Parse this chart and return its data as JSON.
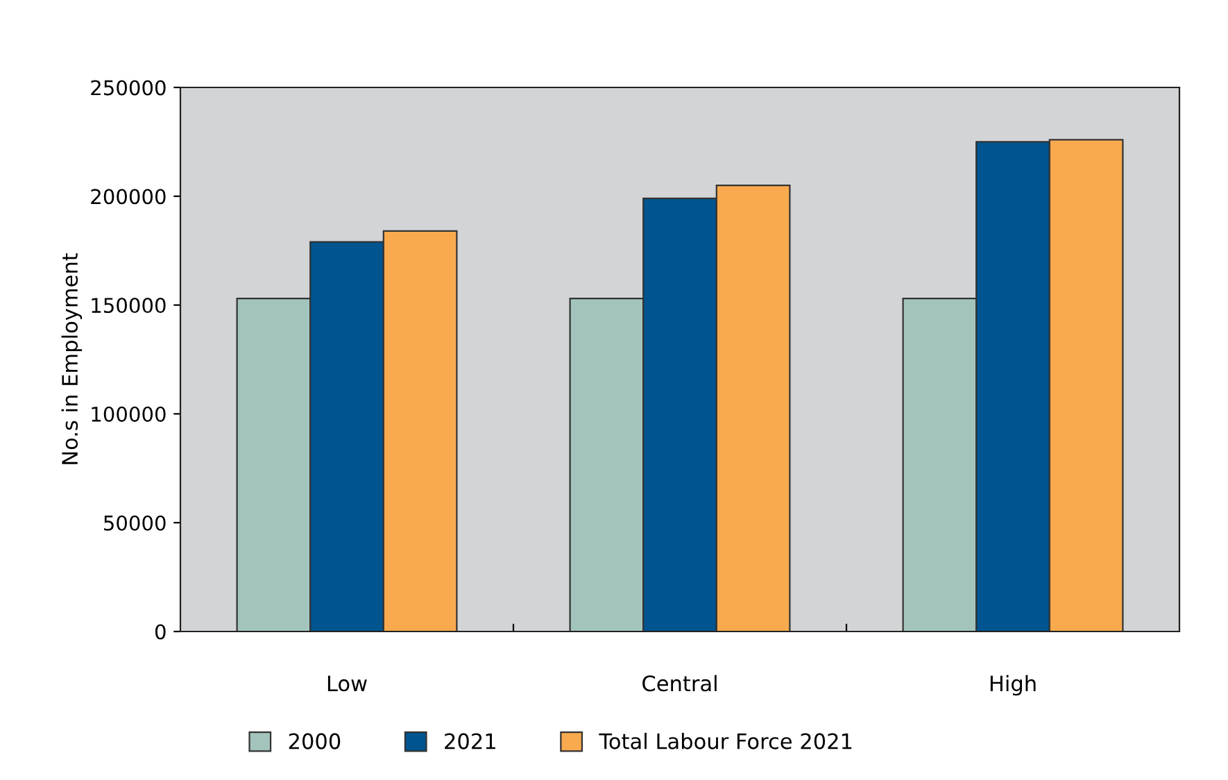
{
  "chart_data": {
    "type": "bar",
    "ylabel": "No.s in Employment",
    "categories": [
      "Low",
      "Central",
      "High"
    ],
    "series": [
      {
        "name": "2000",
        "color": "#a3c4bc",
        "values": [
          153000,
          153000,
          153000
        ]
      },
      {
        "name": "2021",
        "color": "#00548f",
        "values": [
          179000,
          199000,
          225000
        ]
      },
      {
        "name": "Total Labour Force 2021",
        "color": "#f9aa4e",
        "values": [
          184000,
          205000,
          226000
        ]
      }
    ],
    "ylim": [
      0,
      250000
    ],
    "yticks": [
      0,
      50000,
      100000,
      150000,
      200000,
      250000
    ],
    "grid": false,
    "legend": "bottom"
  }
}
